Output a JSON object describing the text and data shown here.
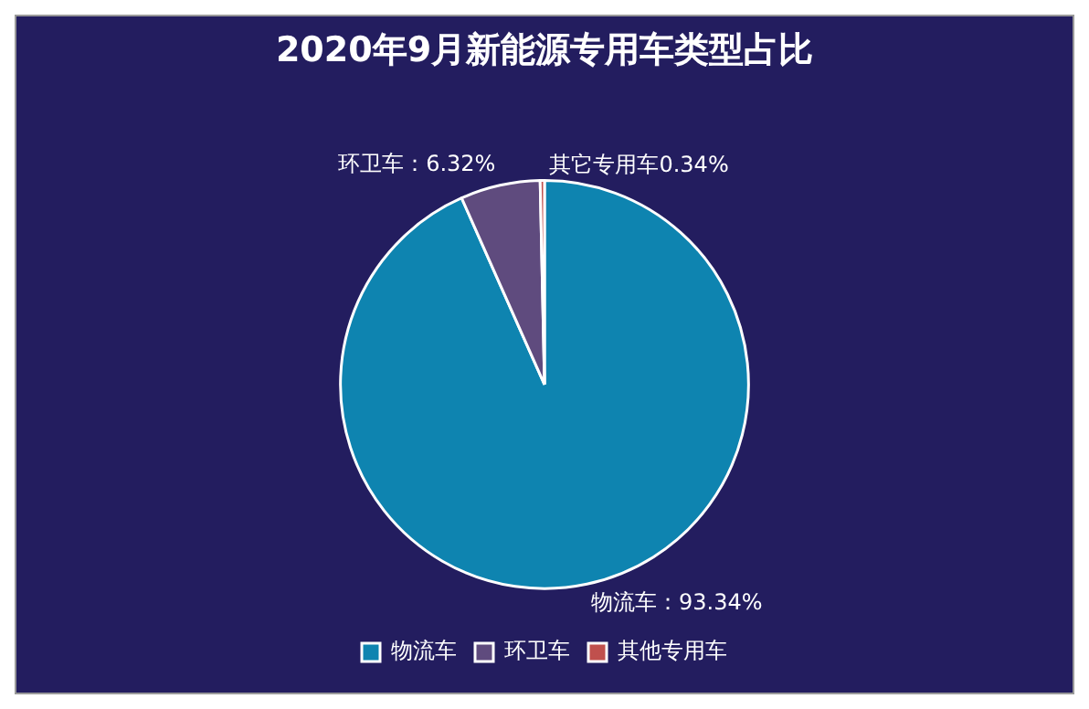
{
  "chart_data": {
    "type": "pie",
    "title": "2020年9月新能源专用车类型占比",
    "categories": [
      "物流车",
      "环卫车",
      "其他专用车"
    ],
    "values": [
      93.34,
      6.32,
      0.34
    ],
    "colors": [
      "#0e84b0",
      "#5f4b7e",
      "#c0504d"
    ],
    "value_labels": [
      "物流车：93.34%",
      "环卫车：6.32%",
      "其它专用车0.34%"
    ],
    "legend": "bottom"
  }
}
